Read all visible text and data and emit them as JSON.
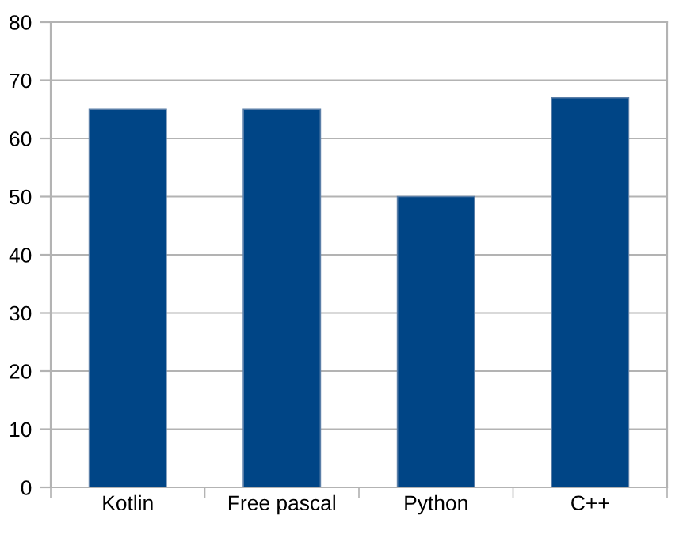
{
  "chart_data": {
    "type": "bar",
    "categories": [
      "Kotlin",
      "Free pascal",
      "Python",
      "C++"
    ],
    "values": [
      65,
      65,
      50,
      67
    ],
    "color": "#004586",
    "ylim": [
      0,
      80
    ],
    "yticks": [
      0,
      10,
      20,
      30,
      40,
      50,
      60,
      70,
      80
    ],
    "grid": "y",
    "legend": false
  }
}
